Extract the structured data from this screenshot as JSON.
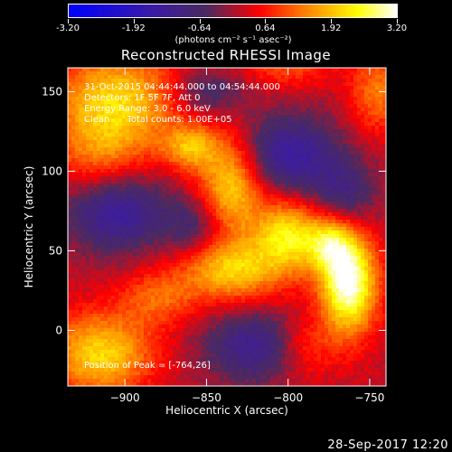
{
  "colorbar": {
    "tick_labels": [
      "-3.20",
      "-1.92",
      "-0.64",
      "0.64",
      "1.92",
      "3.20"
    ],
    "units": "(photons cm⁻² s⁻¹ asec⁻²)",
    "colors": [
      "#0000ff",
      "#3a1aa8",
      "#4a2a60",
      "#ff0000",
      "#ff8000",
      "#ffff00",
      "#ffffff"
    ]
  },
  "chart_data": {
    "type": "heatmap",
    "title": "Reconstructed RHESSI Image",
    "xlabel": "Heliocentric X (arcsec)",
    "ylabel": "Heliocentric Y (arcsec)",
    "xlim": [
      -935,
      -740
    ],
    "ylim": [
      -35,
      165
    ],
    "x_ticks": [
      -900,
      -850,
      -800,
      -750
    ],
    "x_tick_labels": [
      "−900",
      "−850",
      "−800",
      "−750"
    ],
    "y_ticks": [
      0,
      50,
      100,
      150
    ],
    "y_tick_labels": [
      "0",
      "50",
      "100",
      "150"
    ],
    "peak_position": [
      -764,
      26
    ],
    "value_range": [
      -3.2,
      3.2
    ],
    "blobs": [
      {
        "x": -905,
        "y": 145,
        "amp": 1.9,
        "sx": 28,
        "sy": 22
      },
      {
        "x": -915,
        "y": 110,
        "amp": 1.0,
        "sx": 20,
        "sy": 18
      },
      {
        "x": -860,
        "y": 115,
        "amp": 1.5,
        "sx": 12,
        "sy": 10
      },
      {
        "x": -835,
        "y": 90,
        "amp": 2.1,
        "sx": 14,
        "sy": 22
      },
      {
        "x": -800,
        "y": 60,
        "amp": 2.1,
        "sx": 14,
        "sy": 16
      },
      {
        "x": -763,
        "y": 30,
        "amp": 3.2,
        "sx": 12,
        "sy": 22
      },
      {
        "x": -775,
        "y": 55,
        "amp": 1.6,
        "sx": 10,
        "sy": 12
      },
      {
        "x": -835,
        "y": 38,
        "amp": 1.9,
        "sx": 22,
        "sy": 14
      },
      {
        "x": -915,
        "y": -15,
        "amp": 2.0,
        "sx": 22,
        "sy": 18
      },
      {
        "x": -880,
        "y": 20,
        "amp": 1.0,
        "sx": 16,
        "sy": 12
      },
      {
        "x": -745,
        "y": 150,
        "amp": 1.2,
        "sx": 12,
        "sy": 18
      },
      {
        "x": -800,
        "y": 165,
        "amp": 0.8,
        "sx": 18,
        "sy": 10
      },
      {
        "x": -790,
        "y": -10,
        "amp": 0.9,
        "sx": 14,
        "sy": 14
      },
      {
        "x": -905,
        "y": 75,
        "amp": -1.6,
        "sx": 22,
        "sy": 18
      },
      {
        "x": -800,
        "y": 110,
        "amp": -1.6,
        "sx": 22,
        "sy": 18
      },
      {
        "x": -855,
        "y": 65,
        "amp": -1.0,
        "sx": 14,
        "sy": 14
      },
      {
        "x": -820,
        "y": -10,
        "amp": -1.4,
        "sx": 22,
        "sy": 16
      },
      {
        "x": -765,
        "y": 85,
        "amp": -1.0,
        "sx": 14,
        "sy": 16
      },
      {
        "x": -850,
        "y": 150,
        "amp": -1.0,
        "sx": 16,
        "sy": 10
      }
    ]
  },
  "info_lines": [
    "31-Oct-2015 04:44:44.000 to 04:54:44.000",
    "Detectors: 1F 5F 7F, Att 0",
    "Energy Range: 3.0 - 6.0 keV",
    "Clean      Total counts: 1.00E+05"
  ],
  "peak_label": "Position of Peak = [-764,26]",
  "footer_timestamp": "28-Sep-2017 12:20"
}
